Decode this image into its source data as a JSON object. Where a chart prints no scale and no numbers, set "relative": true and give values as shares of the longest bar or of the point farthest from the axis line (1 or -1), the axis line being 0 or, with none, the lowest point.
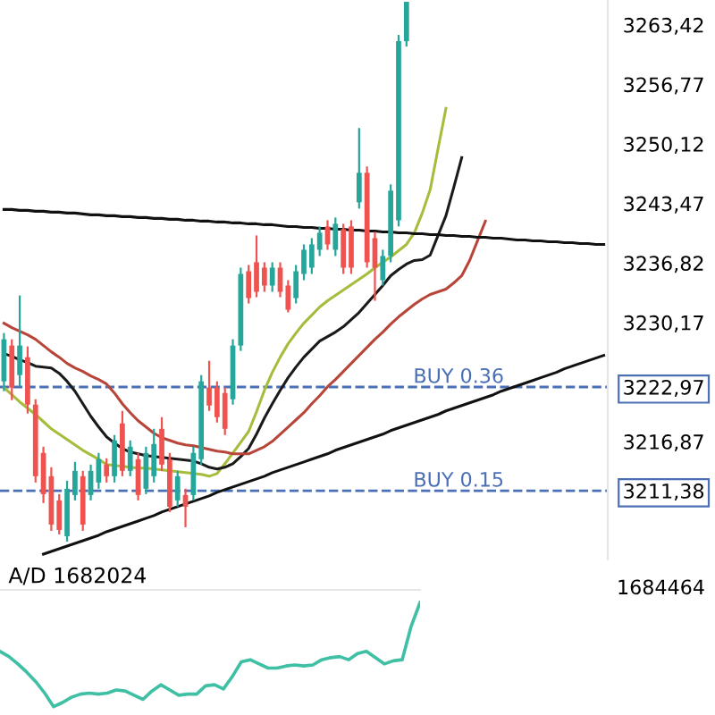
{
  "chart_data": [
    {
      "type": "candlestick",
      "tick_labels": "y",
      "ylim": [
        3203.7,
        3266.2
      ],
      "yticks": [
        {
          "value": 3263.42,
          "label": "3263,42"
        },
        {
          "value": 3256.77,
          "label": "3256,77"
        },
        {
          "value": 3250.12,
          "label": "3250,12"
        },
        {
          "value": 3243.47,
          "label": "3243,47"
        },
        {
          "value": 3236.82,
          "label": "3236,82"
        },
        {
          "value": 3230.17,
          "label": "3230,17"
        },
        {
          "value": 3222.97,
          "label": "3222,97"
        },
        {
          "value": 3216.87,
          "label": "3216,87"
        },
        {
          "value": 3211.38,
          "label": "3211,38"
        }
      ],
      "categories": [
        null,
        null,
        null,
        null,
        null,
        null,
        null,
        null,
        null,
        null,
        null,
        null,
        null,
        null,
        null,
        null,
        null,
        null,
        null,
        null,
        null,
        null,
        null,
        null,
        null,
        null,
        null,
        null,
        null,
        null,
        null,
        null,
        null,
        null,
        null,
        null,
        null,
        null,
        null,
        null,
        null,
        null,
        null,
        null,
        null,
        null,
        null,
        null,
        null,
        null,
        null,
        null,
        null,
        null,
        null,
        null,
        null,
        null,
        null,
        null,
        null,
        null,
        null,
        null,
        null,
        null,
        null,
        null,
        null,
        null,
        null,
        null,
        null,
        null,
        null,
        null,
        null
      ],
      "ohlc": [
        [
          3223.6,
          3229.0,
          3222.5,
          3228.3
        ],
        [
          3227.6,
          3228.3,
          3221.5,
          3222.9
        ],
        [
          3224.3,
          3233.2,
          3223.0,
          3227.6
        ],
        [
          3226.3,
          3227.5,
          3220.0,
          3221.0
        ],
        [
          3221.0,
          3221.6,
          3212.3,
          3213.0
        ],
        [
          3215.6,
          3216.3,
          3210.0,
          3211.0
        ],
        [
          3213.0,
          3214.0,
          3206.9,
          3207.6
        ],
        [
          3210.3,
          3211.0,
          3206.5,
          3207.0
        ],
        [
          3206.3,
          3212.5,
          3205.7,
          3211.6
        ],
        [
          3210.9,
          3214.6,
          3210.3,
          3213.6
        ],
        [
          3213.0,
          3213.6,
          3206.9,
          3207.6
        ],
        [
          3210.9,
          3214.3,
          3210.3,
          3213.6
        ],
        [
          3212.3,
          3215.6,
          3211.6,
          3214.9
        ],
        [
          3214.3,
          3215.0,
          3212.3,
          3213.0
        ],
        [
          3213.0,
          3217.6,
          3212.3,
          3217.0
        ],
        [
          3218.9,
          3220.3,
          3213.0,
          3213.6
        ],
        [
          3213.6,
          3217.0,
          3213.0,
          3216.3
        ],
        [
          3214.9,
          3215.6,
          3210.3,
          3210.9
        ],
        [
          3211.6,
          3216.3,
          3211.0,
          3215.6
        ],
        [
          3213.0,
          3218.3,
          3212.3,
          3216.6
        ],
        [
          3218.3,
          3219.6,
          3213.6,
          3214.3
        ],
        [
          3214.9,
          3215.6,
          3209.0,
          3209.6
        ],
        [
          3210.3,
          3213.6,
          3209.6,
          3213.0
        ],
        [
          3210.9,
          3211.6,
          3207.3,
          3209.6
        ],
        [
          3210.9,
          3216.3,
          3210.3,
          3215.6
        ],
        [
          3214.9,
          3224.3,
          3214.3,
          3223.6
        ],
        [
          3222.9,
          3225.9,
          3220.3,
          3220.9
        ],
        [
          3222.9,
          3223.6,
          3219.0,
          3219.6
        ],
        [
          3222.3,
          3222.9,
          3217.6,
          3218.3
        ],
        [
          3221.6,
          3228.3,
          3221.0,
          3227.6
        ],
        [
          3227.6,
          3236.3,
          3227.0,
          3235.6
        ],
        [
          3235.9,
          3236.6,
          3232.3,
          3232.9
        ],
        [
          3236.9,
          3239.9,
          3233.0,
          3233.6
        ],
        [
          3236.3,
          3236.9,
          3233.6,
          3234.3
        ],
        [
          3234.3,
          3236.9,
          3233.6,
          3236.3
        ],
        [
          3236.3,
          3236.9,
          3233.0,
          3233.6
        ],
        [
          3234.3,
          3234.9,
          3231.3,
          3231.6
        ],
        [
          3232.9,
          3236.6,
          3232.3,
          3235.9
        ],
        [
          3235.6,
          3238.9,
          3234.9,
          3238.3
        ],
        [
          3236.3,
          3239.6,
          3235.6,
          3238.9
        ],
        [
          3238.3,
          3240.9,
          3237.6,
          3240.2
        ],
        [
          3240.9,
          3241.6,
          3238.3,
          3238.9
        ],
        [
          3238.3,
          3241.9,
          3237.6,
          3241.2
        ],
        [
          3240.6,
          3241.2,
          3235.6,
          3236.3
        ],
        [
          3240.9,
          3241.6,
          3235.6,
          3236.3
        ],
        [
          3243.6,
          3251.9,
          3242.9,
          3246.9
        ],
        [
          3246.9,
          3247.6,
          3236.3,
          3236.9
        ],
        [
          3239.6,
          3240.3,
          3232.6,
          3236.3
        ],
        [
          3234.9,
          3238.3,
          3234.3,
          3237.6
        ],
        [
          3237.6,
          3245.6,
          3236.9,
          3244.9
        ],
        [
          3241.6,
          3262.3,
          3240.9,
          3261.6
        ],
        [
          3261.6,
          3266.0,
          3261.0,
          3266.0
        ],
        null,
        null,
        null,
        null,
        null,
        null,
        null,
        null,
        null,
        null,
        null,
        null,
        null,
        null,
        null,
        null,
        null,
        null,
        null,
        null,
        null,
        null,
        null,
        null,
        null
      ],
      "series": [
        {
          "type": "line",
          "color": "#a4bd3c",
          "values": [
            3222.9,
            3222.1,
            3221.3,
            3220.6,
            3219.9,
            3219.1,
            3218.3,
            3217.7,
            3217.1,
            3216.5,
            3215.9,
            3215.4,
            3214.9,
            3214.3,
            3214.2,
            3214.1,
            3214.0,
            3213.9,
            3213.9,
            3213.8,
            3213.7,
            3213.6,
            3213.5,
            3213.4,
            3213.3,
            3213.2,
            3213.0,
            3213.3,
            3214.4,
            3215.6,
            3216.8,
            3218.0,
            3220.2,
            3222.6,
            3224.6,
            3226.3,
            3227.8,
            3229.0,
            3230.1,
            3231.0,
            3231.9,
            3232.6,
            3233.2,
            3233.8,
            3234.4,
            3235.0,
            3235.6,
            3236.3,
            3236.9,
            3237.5,
            3238.2,
            3238.9,
            3240.2,
            3242.4,
            3245.0,
            3249.6,
            3254.1,
            null,
            null,
            null,
            null,
            null,
            null,
            null,
            null,
            null,
            null,
            null,
            null,
            null,
            null,
            null,
            null,
            null,
            null,
            null,
            null
          ]
        },
        {
          "type": "line",
          "color": "#1a1a1a",
          "values": [
            3226.7,
            3226.4,
            3226.0,
            3225.7,
            3225.3,
            3225.2,
            3225.1,
            3224.5,
            3223.6,
            3222.5,
            3221.1,
            3219.7,
            3218.5,
            3217.4,
            3216.7,
            3216.1,
            3215.7,
            3215.5,
            3215.3,
            3215.2,
            3215.1,
            3215.0,
            3214.9,
            3214.8,
            3214.7,
            3214.4,
            3214.0,
            3213.8,
            3214.0,
            3214.4,
            3215.2,
            3216.1,
            3217.7,
            3219.5,
            3221.1,
            3222.6,
            3224.0,
            3225.2,
            3226.3,
            3227.2,
            3228.1,
            3228.6,
            3229.1,
            3229.7,
            3230.5,
            3231.3,
            3232.3,
            3233.3,
            3234.3,
            3235.4,
            3236.1,
            3236.7,
            3237.1,
            3237.2,
            3237.7,
            3239.9,
            3242.1,
            3245.3,
            3248.6,
            null,
            null,
            null,
            null,
            null,
            null,
            null,
            null,
            null,
            null,
            null,
            null,
            null,
            null,
            null,
            null,
            null,
            null
          ]
        },
        {
          "type": "line",
          "color": "#b8453a",
          "values": [
            3230.1,
            3229.6,
            3229.2,
            3228.8,
            3228.3,
            3227.6,
            3226.9,
            3226.3,
            3225.6,
            3225.1,
            3224.7,
            3224.2,
            3223.8,
            3223.3,
            3222.3,
            3221.1,
            3220.1,
            3219.2,
            3218.5,
            3217.8,
            3217.3,
            3217.0,
            3216.7,
            3216.5,
            3216.4,
            3216.2,
            3216.0,
            3215.8,
            3215.7,
            3215.5,
            3215.5,
            3215.5,
            3215.9,
            3216.3,
            3216.9,
            3217.7,
            3218.5,
            3219.3,
            3220.1,
            3221.1,
            3222.0,
            3223.0,
            3223.8,
            3224.7,
            3225.6,
            3226.5,
            3227.4,
            3228.3,
            3229.1,
            3230.0,
            3230.8,
            3231.5,
            3232.2,
            3232.8,
            3233.3,
            3233.6,
            3233.9,
            3234.6,
            3235.4,
            3237.1,
            3239.3,
            3241.5,
            null,
            null,
            null,
            null,
            null,
            null,
            null,
            null,
            null,
            null,
            null,
            null,
            null,
            null,
            null
          ]
        },
        {
          "type": "line",
          "color": "#111111",
          "values": [
            3242.8,
            3242.8,
            3242.7,
            3242.7,
            3242.6,
            3242.6,
            3242.5,
            3242.5,
            3242.4,
            3242.4,
            3242.3,
            3242.2,
            3242.2,
            3242.1,
            3242.1,
            3242.0,
            3242.0,
            3241.9,
            3241.9,
            3241.8,
            3241.8,
            3241.7,
            3241.7,
            3241.6,
            3241.6,
            3241.5,
            3241.5,
            3241.4,
            3241.4,
            3241.3,
            3241.3,
            3241.2,
            3241.2,
            3241.1,
            3241.1,
            3241.0,
            3240.9,
            3240.9,
            3240.8,
            3240.8,
            3240.7,
            3240.7,
            3240.6,
            3240.6,
            3240.5,
            3240.5,
            3240.4,
            3240.4,
            3240.3,
            3240.3,
            3240.2,
            3240.2,
            3240.1,
            3240.1,
            3240.0,
            3240.0,
            3239.9,
            3239.9,
            3239.8,
            3239.8,
            3239.7,
            3239.7,
            3239.6,
            3239.6,
            3239.5,
            3239.4,
            3239.4,
            3239.3,
            3239.3,
            3239.2,
            3239.2,
            3239.1,
            3239.1,
            3239.0,
            3239.0,
            3238.9,
            3238.9
          ]
        },
        {
          "type": "line",
          "color": "#111111",
          "values": [
            null,
            null,
            null,
            null,
            null,
            3204.3,
            3204.6,
            3204.9,
            3205.2,
            3205.5,
            3205.8,
            3206.1,
            3206.4,
            3206.8,
            3207.1,
            3207.4,
            3207.7,
            3208.0,
            3208.3,
            3208.6,
            3209.0,
            3209.3,
            3209.6,
            3209.9,
            3210.2,
            3210.5,
            3210.8,
            3211.2,
            3211.5,
            3211.8,
            3212.1,
            3212.4,
            3212.7,
            3213.0,
            3213.4,
            3213.7,
            3214.0,
            3214.3,
            3214.6,
            3214.9,
            3215.2,
            3215.5,
            3215.9,
            3216.2,
            3216.5,
            3216.8,
            3217.1,
            3217.4,
            3217.7,
            3218.1,
            3218.4,
            3218.7,
            3219.0,
            3219.3,
            3219.6,
            3219.9,
            3220.3,
            3220.6,
            3220.9,
            3221.2,
            3221.5,
            3221.8,
            3222.1,
            3222.5,
            3222.8,
            3223.1,
            3223.4,
            3223.7,
            3224.0,
            3224.3,
            3224.6,
            3225.0,
            3225.3,
            3225.6,
            3225.9,
            3226.2,
            3226.5
          ]
        }
      ],
      "ref_lines": [
        {
          "axis": "y",
          "value": 3222.97,
          "label": "BUY 0.36",
          "color": "#4a6fb5",
          "line_style": "dashed"
        },
        {
          "axis": "y",
          "value": 3211.38,
          "label": "BUY 0.15",
          "color": "#4a6fb5",
          "line_style": "dashed"
        }
      ]
    },
    {
      "type": "line",
      "relative": true,
      "tick_labels": false,
      "title": "A/D 1682024",
      "annotations": [
        "1684464"
      ],
      "color": "#3fbfa4",
      "categories": [
        null,
        null,
        null,
        null,
        null,
        null,
        null,
        null,
        null,
        null,
        null,
        null,
        null,
        null,
        null,
        null,
        null,
        null,
        null,
        null,
        null,
        null,
        null,
        null,
        null,
        null,
        null,
        null,
        null,
        null,
        null,
        null,
        null,
        null,
        null,
        null,
        null,
        null,
        null,
        null,
        null,
        null,
        null,
        null,
        null,
        null,
        null,
        null
      ],
      "values": [
        0.53,
        0.48,
        0.41,
        0.33,
        0.24,
        0.13,
        0,
        0.04,
        0.09,
        0.12,
        0.13,
        0.12,
        0.13,
        0.16,
        0.15,
        0.11,
        0.07,
        0.15,
        0.21,
        0.16,
        0.11,
        0.12,
        0.12,
        0.2,
        0.21,
        0.17,
        0.29,
        0.43,
        0.45,
        0.41,
        0.37,
        0.37,
        0.39,
        0.4,
        0.39,
        0.4,
        0.45,
        0.47,
        0.48,
        0.45,
        0.51,
        0.53,
        0.47,
        0.41,
        0.44,
        0.45,
        0.77,
        1.0
      ]
    }
  ]
}
